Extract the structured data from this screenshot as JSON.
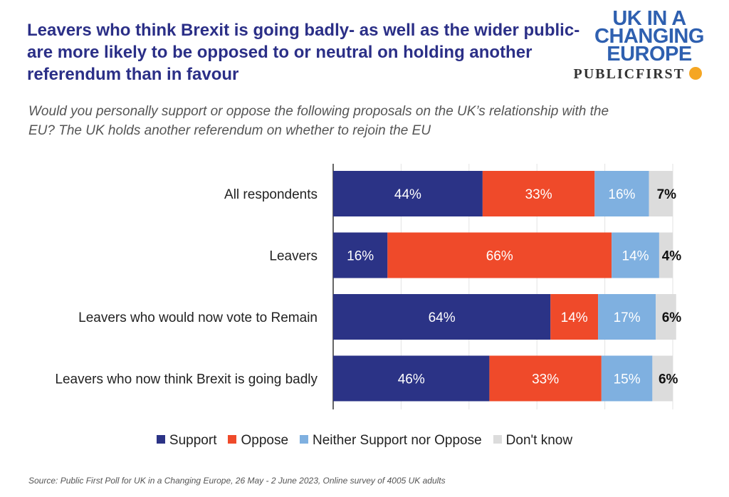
{
  "header": {
    "title": "Leavers who think Brexit is going badly- as well as the wider public- are more likely to be opposed to or neutral on holding another referendum than in favour",
    "subtitle": "Would you personally support or oppose the following proposals on the UK’s relationship with the EU? The UK holds another referendum on whether to rejoin the EU"
  },
  "logo": {
    "lines": [
      "UK IN A",
      "CHANGING",
      "EUROPE"
    ],
    "partner": "PUBLICFIRST"
  },
  "colors": {
    "support": "#2b3386",
    "oppose": "#ef4a2a",
    "neither": "#7fb0e0",
    "dontknow": "#dcdcdc",
    "title": "#2b2f87"
  },
  "chart_data": {
    "type": "bar",
    "orientation": "horizontal",
    "stacked": true,
    "categories": [
      "All respondents",
      "Leavers",
      "Leavers who would now vote to Remain",
      "Leavers who now think Brexit is going badly"
    ],
    "series": [
      {
        "name": "Support",
        "values": [
          44,
          16,
          64,
          46
        ]
      },
      {
        "name": "Oppose",
        "values": [
          33,
          66,
          14,
          33
        ]
      },
      {
        "name": "Neither Support nor Oppose",
        "values": [
          16,
          14,
          17,
          15
        ]
      },
      {
        "name": "Don't know",
        "values": [
          7,
          4,
          6,
          6
        ]
      }
    ],
    "value_suffix": "%",
    "xlim": [
      0,
      100
    ],
    "legend_position": "bottom",
    "grid": true
  },
  "source": "Source: Public First Poll for UK in a Changing Europe, 26 May - 2 June 2023, Online survey of 4005 UK adults"
}
